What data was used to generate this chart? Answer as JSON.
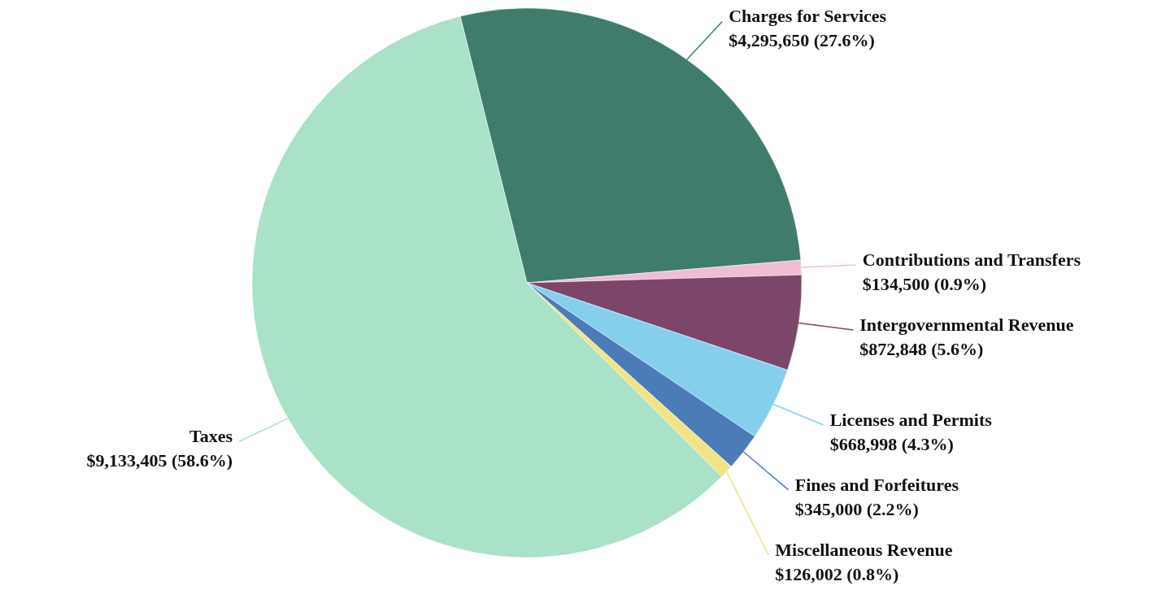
{
  "chart_data": {
    "type": "pie",
    "categories": [
      "Charges for Services",
      "Contributions and Transfers",
      "Intergovernmental Revenue",
      "Licenses and Permits",
      "Fines and Forfeitures",
      "Miscellaneous Revenue",
      "Taxes"
    ],
    "values": [
      4295650,
      134500,
      872848,
      668998,
      345000,
      126002,
      9133405
    ],
    "value_labels": [
      "$4,295,650 (27.6%)",
      "$134,500 (0.9%)",
      "$872,848 (5.6%)",
      "$668,998 (4.3%)",
      "$345,000 (2.2%)",
      "$126,002 (0.8%)",
      "$9,133,405 (58.6%)"
    ],
    "colors": [
      "#3f7c6c",
      "#f2bcd4",
      "#7b4669",
      "#84d0ec",
      "#4c7cb8",
      "#efe48a",
      "#a9e2c6"
    ]
  }
}
